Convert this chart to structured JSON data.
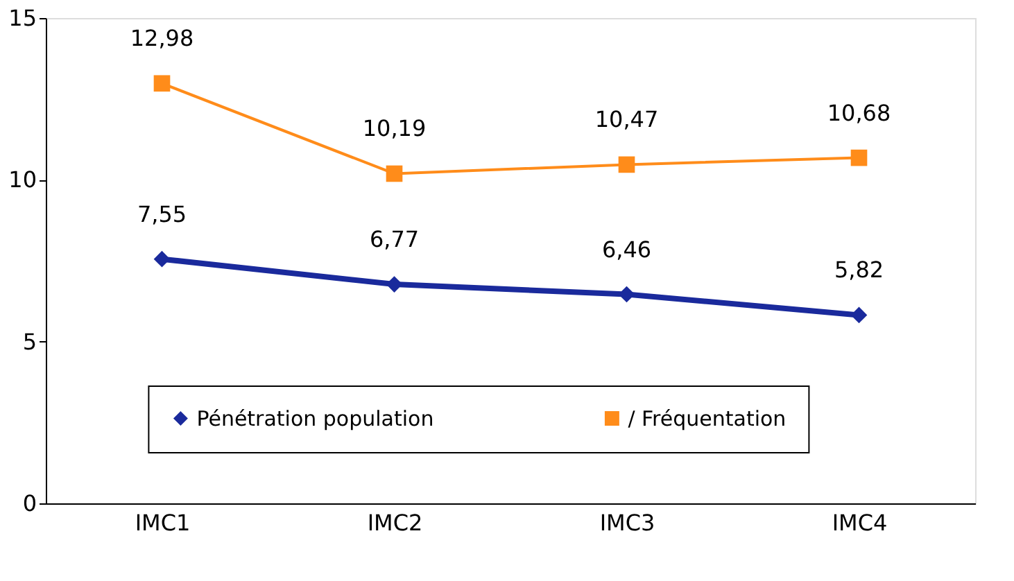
{
  "chart_data": {
    "type": "line",
    "categories": [
      "IMC1",
      "IMC2",
      "IMC3",
      "IMC4"
    ],
    "series": [
      {
        "name": "Pénétration population",
        "color": "#1a2a9c",
        "marker": "diamond",
        "values": [
          7.55,
          6.77,
          6.46,
          5.82
        ],
        "value_labels": [
          "7,55",
          "6,77",
          "6,46",
          "5,82"
        ]
      },
      {
        "name": "/ Fréquentation",
        "color": "#ff8c1a",
        "marker": "square",
        "values": [
          12.98,
          10.19,
          10.47,
          10.68
        ],
        "value_labels": [
          "12,98",
          "10,19",
          "10,47",
          "10,68"
        ]
      }
    ],
    "ylim": [
      0,
      15
    ],
    "yticks": [
      0,
      5,
      10,
      15
    ],
    "grid": false,
    "legend": "bottom"
  }
}
